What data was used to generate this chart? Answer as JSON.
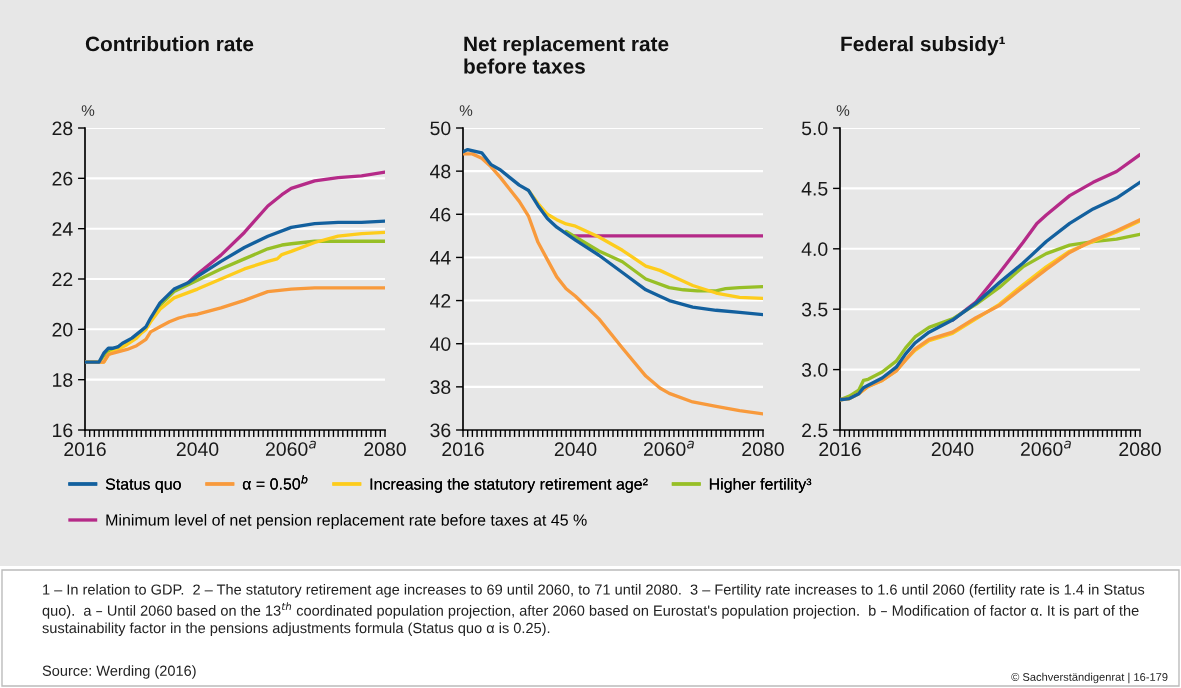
{
  "chart_data": [
    {
      "type": "line",
      "title": "Contribution rate",
      "ylabel": "%",
      "grid": "y",
      "legend": "bottom",
      "xlim": [
        2016,
        2080
      ],
      "ylim": [
        16,
        28
      ],
      "yticks": [
        16,
        18,
        20,
        22,
        24,
        26,
        28
      ],
      "xticks": [
        2016,
        {
          "value": 2017,
          "label": null
        },
        {
          "value": 2018,
          "label": null
        },
        {
          "value": 2019,
          "label": null
        },
        {
          "value": 2020,
          "label": null
        },
        {
          "value": 2021,
          "label": null
        },
        {
          "value": 2022,
          "label": null
        },
        {
          "value": 2023,
          "label": null
        },
        {
          "value": 2024,
          "label": null
        },
        {
          "value": 2025,
          "label": null
        },
        {
          "value": 2026,
          "label": null
        },
        {
          "value": 2027,
          "label": null
        },
        {
          "value": 2028,
          "label": null
        },
        {
          "value": 2029,
          "label": null
        },
        {
          "value": 2030,
          "label": null
        },
        {
          "value": 2031,
          "label": null
        },
        {
          "value": 2032,
          "label": null
        },
        {
          "value": 2033,
          "label": null
        },
        {
          "value": 2034,
          "label": null
        },
        {
          "value": 2035,
          "label": null
        },
        {
          "value": 2036,
          "label": null
        },
        {
          "value": 2037,
          "label": null
        },
        {
          "value": 2038,
          "label": null
        },
        {
          "value": 2039,
          "label": null
        },
        2040,
        {
          "value": 2041,
          "label": null
        },
        {
          "value": 2042,
          "label": null
        },
        {
          "value": 2043,
          "label": null
        },
        {
          "value": 2044,
          "label": null
        },
        {
          "value": 2045,
          "label": null
        },
        {
          "value": 2046,
          "label": null
        },
        {
          "value": 2047,
          "label": null
        },
        {
          "value": 2048,
          "label": null
        },
        {
          "value": 2049,
          "label": null
        },
        {
          "value": 2050,
          "label": null
        },
        {
          "value": 2051,
          "label": null
        },
        {
          "value": 2052,
          "label": null
        },
        {
          "value": 2053,
          "label": null
        },
        {
          "value": 2054,
          "label": null
        },
        {
          "value": 2055,
          "label": null
        },
        {
          "value": 2056,
          "label": null
        },
        {
          "value": 2057,
          "label": null
        },
        {
          "value": 2058,
          "label": null
        },
        {
          "value": 2059,
          "label": null
        },
        {
          "value": 2060,
          "label": "2060$^{a}$"
        },
        {
          "value": 2061,
          "label": null
        },
        {
          "value": 2062,
          "label": null
        },
        {
          "value": 2063,
          "label": null
        },
        {
          "value": 2064,
          "label": null
        },
        {
          "value": 2065,
          "label": null
        },
        {
          "value": 2066,
          "label": null
        },
        {
          "value": 2067,
          "label": null
        },
        {
          "value": 2068,
          "label": null
        },
        {
          "value": 2069,
          "label": null
        },
        {
          "value": 2070,
          "label": null
        },
        {
          "value": 2071,
          "label": null
        },
        {
          "value": 2072,
          "label": null
        },
        {
          "value": 2073,
          "label": null
        },
        {
          "value": 2074,
          "label": null
        },
        {
          "value": 2075,
          "label": null
        },
        {
          "value": 2076,
          "label": null
        },
        {
          "value": 2077,
          "label": null
        },
        {
          "value": 2078,
          "label": null
        },
        {
          "value": 2079,
          "label": null
        },
        2080
      ],
      "series": [
        {
          "name": "Status quo",
          "color": "#13609e",
          "x": [
            2016,
            2018,
            2019,
            2020,
            2021,
            2022,
            2023,
            2024,
            2025,
            2026,
            2027,
            2028,
            2029,
            2030,
            2032,
            2035,
            2038,
            2040,
            2045,
            2050,
            2055,
            2060,
            2065,
            2070,
            2075,
            2080
          ],
          "values": [
            18.7,
            18.7,
            18.7,
            19.05,
            19.25,
            19.25,
            19.3,
            19.45,
            19.55,
            19.65,
            19.8,
            19.95,
            20.1,
            20.45,
            21.05,
            21.6,
            21.85,
            22.1,
            22.7,
            23.25,
            23.7,
            24.05,
            24.2,
            24.25,
            24.25,
            24.3
          ]
        },
        {
          "name": "α = 0.50$^{b}$",
          "color": "#f89a3c",
          "x": [
            2016,
            2020,
            2021,
            2023,
            2025,
            2027,
            2029,
            2030,
            2032,
            2034,
            2036,
            2038,
            2040,
            2045,
            2050,
            2055,
            2060,
            2065,
            2080
          ],
          "values": [
            18.7,
            18.7,
            19.0,
            19.1,
            19.2,
            19.35,
            19.6,
            19.9,
            20.1,
            20.3,
            20.45,
            20.55,
            20.6,
            20.85,
            21.15,
            21.5,
            21.6,
            21.65,
            21.65
          ]
        },
        {
          "name": "Increasing the statutory retirement age²",
          "color": "#fdcc1c",
          "x": [
            2016,
            2020,
            2021,
            2023,
            2025,
            2027,
            2028,
            2029,
            2030,
            2032,
            2035,
            2040,
            2045,
            2050,
            2055,
            2057,
            2058,
            2060,
            2065,
            2070,
            2075,
            2080
          ],
          "values": [
            18.7,
            18.7,
            19.0,
            19.2,
            19.4,
            19.65,
            19.85,
            20.0,
            20.3,
            20.8,
            21.25,
            21.6,
            22.0,
            22.4,
            22.7,
            22.8,
            22.97,
            23.1,
            23.45,
            23.7,
            23.8,
            23.85
          ]
        },
        {
          "name": "Higher fertility³",
          "color": "#97bf26",
          "x": [
            2016,
            2018,
            2019,
            2020,
            2021,
            2022,
            2024,
            2026,
            2028,
            2029,
            2030,
            2032,
            2035,
            2040,
            2045,
            2050,
            2055,
            2058,
            2060,
            2065,
            2070,
            2080
          ],
          "values": [
            18.7,
            18.7,
            18.7,
            18.95,
            19.15,
            19.2,
            19.4,
            19.6,
            19.9,
            20.05,
            20.35,
            20.95,
            21.5,
            21.95,
            22.4,
            22.8,
            23.2,
            23.35,
            23.4,
            23.5,
            23.5,
            23.5
          ]
        },
        {
          "name": "Minimum level of net pension replacement rate before taxes at 45 %",
          "color": "#b52a88",
          "x": [
            2038,
            2040,
            2045,
            2050,
            2055,
            2058,
            2060,
            2065,
            2070,
            2075,
            2080
          ],
          "values": [
            21.85,
            22.2,
            22.95,
            23.85,
            24.9,
            25.35,
            25.6,
            25.9,
            26.03,
            26.1,
            26.25
          ]
        }
      ]
    },
    {
      "type": "line",
      "title": "Net replacement rate\nbefore taxes",
      "ylabel": "%",
      "grid": "y",
      "xlim": [
        2016,
        2080
      ],
      "ylim": [
        36,
        50
      ],
      "yticks": [
        36,
        38,
        40,
        42,
        44,
        46,
        48,
        50
      ],
      "xticks": [
        2016,
        {
          "value": 2017,
          "label": null
        },
        {
          "value": 2018,
          "label": null
        },
        {
          "value": 2019,
          "label": null
        },
        {
          "value": 2020,
          "label": null
        },
        {
          "value": 2021,
          "label": null
        },
        {
          "value": 2022,
          "label": null
        },
        {
          "value": 2023,
          "label": null
        },
        {
          "value": 2024,
          "label": null
        },
        {
          "value": 2025,
          "label": null
        },
        {
          "value": 2026,
          "label": null
        },
        {
          "value": 2027,
          "label": null
        },
        {
          "value": 2028,
          "label": null
        },
        {
          "value": 2029,
          "label": null
        },
        {
          "value": 2030,
          "label": null
        },
        {
          "value": 2031,
          "label": null
        },
        {
          "value": 2032,
          "label": null
        },
        {
          "value": 2033,
          "label": null
        },
        {
          "value": 2034,
          "label": null
        },
        {
          "value": 2035,
          "label": null
        },
        {
          "value": 2036,
          "label": null
        },
        {
          "value": 2037,
          "label": null
        },
        {
          "value": 2038,
          "label": null
        },
        {
          "value": 2039,
          "label": null
        },
        2040,
        {
          "value": 2041,
          "label": null
        },
        {
          "value": 2042,
          "label": null
        },
        {
          "value": 2043,
          "label": null
        },
        {
          "value": 2044,
          "label": null
        },
        {
          "value": 2045,
          "label": null
        },
        {
          "value": 2046,
          "label": null
        },
        {
          "value": 2047,
          "label": null
        },
        {
          "value": 2048,
          "label": null
        },
        {
          "value": 2049,
          "label": null
        },
        {
          "value": 2050,
          "label": null
        },
        {
          "value": 2051,
          "label": null
        },
        {
          "value": 2052,
          "label": null
        },
        {
          "value": 2053,
          "label": null
        },
        {
          "value": 2054,
          "label": null
        },
        {
          "value": 2055,
          "label": null
        },
        {
          "value": 2056,
          "label": null
        },
        {
          "value": 2057,
          "label": null
        },
        {
          "value": 2058,
          "label": null
        },
        {
          "value": 2059,
          "label": null
        },
        {
          "value": 2060,
          "label": "2060$^{a}$"
        },
        {
          "value": 2061,
          "label": null
        },
        {
          "value": 2062,
          "label": null
        },
        {
          "value": 2063,
          "label": null
        },
        {
          "value": 2064,
          "label": null
        },
        {
          "value": 2065,
          "label": null
        },
        {
          "value": 2066,
          "label": null
        },
        {
          "value": 2067,
          "label": null
        },
        {
          "value": 2068,
          "label": null
        },
        {
          "value": 2069,
          "label": null
        },
        {
          "value": 2070,
          "label": null
        },
        {
          "value": 2071,
          "label": null
        },
        {
          "value": 2072,
          "label": null
        },
        {
          "value": 2073,
          "label": null
        },
        {
          "value": 2074,
          "label": null
        },
        {
          "value": 2075,
          "label": null
        },
        {
          "value": 2076,
          "label": null
        },
        {
          "value": 2077,
          "label": null
        },
        {
          "value": 2078,
          "label": null
        },
        {
          "value": 2079,
          "label": null
        },
        2080
      ],
      "series": [
        {
          "name": "Status quo",
          "color": "#13609e",
          "x": [
            2016,
            2017,
            2020,
            2022,
            2024,
            2026,
            2028,
            2030,
            2032,
            2034,
            2036,
            2038,
            2040,
            2045,
            2050,
            2055,
            2058,
            2060,
            2065,
            2070,
            2075,
            2080
          ],
          "values": [
            48.9,
            49.0,
            48.85,
            48.3,
            48.05,
            47.7,
            47.35,
            47.1,
            46.4,
            45.8,
            45.4,
            45.1,
            44.8,
            44.1,
            43.3,
            42.5,
            42.2,
            42.0,
            41.7,
            41.55,
            41.45,
            41.35
          ]
        },
        {
          "name": "α = 0.50$^{b}$",
          "color": "#f89a3c",
          "x": [
            2016,
            2018,
            2020,
            2022,
            2024,
            2026,
            2028,
            2030,
            2032,
            2034,
            2036,
            2038,
            2040,
            2045,
            2050,
            2055,
            2058,
            2060,
            2065,
            2070,
            2075,
            2080
          ],
          "values": [
            48.8,
            48.8,
            48.6,
            48.2,
            47.7,
            47.15,
            46.6,
            45.9,
            44.7,
            43.9,
            43.1,
            42.55,
            42.2,
            41.15,
            39.8,
            38.5,
            37.95,
            37.7,
            37.3,
            37.1,
            36.9,
            36.75
          ]
        },
        {
          "name": "Increasing the statutory retirement age²",
          "color": "#fdcc1c",
          "x": [
            2030,
            2032,
            2034,
            2036,
            2038,
            2040,
            2045,
            2050,
            2055,
            2058,
            2060,
            2065,
            2070,
            2075,
            2080
          ],
          "values": [
            47.1,
            46.5,
            46.0,
            45.75,
            45.55,
            45.45,
            44.95,
            44.33,
            43.6,
            43.4,
            43.2,
            42.7,
            42.35,
            42.15,
            42.1
          ]
        },
        {
          "name": "Higher fertility³",
          "color": "#97bf26",
          "x": [
            2038,
            2040,
            2045,
            2050,
            2055,
            2060,
            2063,
            2066,
            2070,
            2072,
            2075,
            2080
          ],
          "values": [
            45.2,
            44.95,
            44.3,
            43.8,
            43.0,
            42.6,
            42.5,
            42.45,
            42.45,
            42.55,
            42.6,
            42.65
          ]
        },
        {
          "name": "Minimum level of net pension replacement rate before taxes at 45 %",
          "color": "#b52a88",
          "x": [
            2039,
            2045,
            2050,
            2060,
            2070,
            2080
          ],
          "values": [
            45.0,
            45.0,
            45.0,
            45.0,
            45.0,
            45.0
          ]
        }
      ]
    },
    {
      "type": "line",
      "title": "Federal subsidy¹",
      "ylabel": "%",
      "grid": "y",
      "xlim": [
        2016,
        2080
      ],
      "ylim": [
        2.5,
        5.0
      ],
      "yticks": [
        2.5,
        {
          "value": 3,
          "label": "3.0"
        },
        3.5,
        {
          "value": 4,
          "label": "4.0"
        },
        4.5,
        {
          "value": 5,
          "label": "5.0"
        }
      ],
      "xticks": [
        2016,
        {
          "value": 2017,
          "label": null
        },
        {
          "value": 2018,
          "label": null
        },
        {
          "value": 2019,
          "label": null
        },
        {
          "value": 2020,
          "label": null
        },
        {
          "value": 2021,
          "label": null
        },
        {
          "value": 2022,
          "label": null
        },
        {
          "value": 2023,
          "label": null
        },
        {
          "value": 2024,
          "label": null
        },
        {
          "value": 2025,
          "label": null
        },
        {
          "value": 2026,
          "label": null
        },
        {
          "value": 2027,
          "label": null
        },
        {
          "value": 2028,
          "label": null
        },
        {
          "value": 2029,
          "label": null
        },
        {
          "value": 2030,
          "label": null
        },
        {
          "value": 2031,
          "label": null
        },
        {
          "value": 2032,
          "label": null
        },
        {
          "value": 2033,
          "label": null
        },
        {
          "value": 2034,
          "label": null
        },
        {
          "value": 2035,
          "label": null
        },
        {
          "value": 2036,
          "label": null
        },
        {
          "value": 2037,
          "label": null
        },
        {
          "value": 2038,
          "label": null
        },
        {
          "value": 2039,
          "label": null
        },
        2040,
        {
          "value": 2041,
          "label": null
        },
        {
          "value": 2042,
          "label": null
        },
        {
          "value": 2043,
          "label": null
        },
        {
          "value": 2044,
          "label": null
        },
        {
          "value": 2045,
          "label": null
        },
        {
          "value": 2046,
          "label": null
        },
        {
          "value": 2047,
          "label": null
        },
        {
          "value": 2048,
          "label": null
        },
        {
          "value": 2049,
          "label": null
        },
        {
          "value": 2050,
          "label": null
        },
        {
          "value": 2051,
          "label": null
        },
        {
          "value": 2052,
          "label": null
        },
        {
          "value": 2053,
          "label": null
        },
        {
          "value": 2054,
          "label": null
        },
        {
          "value": 2055,
          "label": null
        },
        {
          "value": 2056,
          "label": null
        },
        {
          "value": 2057,
          "label": null
        },
        {
          "value": 2058,
          "label": null
        },
        {
          "value": 2059,
          "label": null
        },
        {
          "value": 2060,
          "label": "2060$^{a}$"
        },
        {
          "value": 2061,
          "label": null
        },
        {
          "value": 2062,
          "label": null
        },
        {
          "value": 2063,
          "label": null
        },
        {
          "value": 2064,
          "label": null
        },
        {
          "value": 2065,
          "label": null
        },
        {
          "value": 2066,
          "label": null
        },
        {
          "value": 2067,
          "label": null
        },
        {
          "value": 2068,
          "label": null
        },
        {
          "value": 2069,
          "label": null
        },
        {
          "value": 2070,
          "label": null
        },
        {
          "value": 2071,
          "label": null
        },
        {
          "value": 2072,
          "label": null
        },
        {
          "value": 2073,
          "label": null
        },
        {
          "value": 2074,
          "label": null
        },
        {
          "value": 2075,
          "label": null
        },
        {
          "value": 2076,
          "label": null
        },
        {
          "value": 2077,
          "label": null
        },
        {
          "value": 2078,
          "label": null
        },
        {
          "value": 2079,
          "label": null
        },
        2080
      ],
      "series": [
        {
          "name": "Status quo",
          "color": "#13609e",
          "x": [
            2016,
            2018,
            2020,
            2021,
            2022,
            2025,
            2028,
            2030,
            2032,
            2035,
            2040,
            2045,
            2050,
            2055,
            2060,
            2065,
            2070,
            2075,
            2080
          ],
          "values": [
            2.75,
            2.76,
            2.8,
            2.85,
            2.87,
            2.93,
            3.02,
            3.13,
            3.22,
            3.31,
            3.41,
            3.55,
            3.72,
            3.88,
            4.06,
            4.21,
            4.33,
            4.42,
            4.55
          ]
        },
        {
          "name": "α = 0.50$^{b}$",
          "color": "#f89a3c",
          "x": [
            2016,
            2018,
            2020,
            2022,
            2025,
            2028,
            2030,
            2032,
            2035,
            2040,
            2045,
            2050,
            2055,
            2060,
            2065,
            2070,
            2075,
            2080
          ],
          "values": [
            2.75,
            2.76,
            2.8,
            2.86,
            2.91,
            2.99,
            3.08,
            3.17,
            3.25,
            3.31,
            3.43,
            3.53,
            3.68,
            3.83,
            3.97,
            4.07,
            4.15,
            4.24
          ]
        },
        {
          "name": "Increasing the statutory retirement age²",
          "color": "#fdcc1c",
          "x": [
            2016,
            2018,
            2020,
            2022,
            2025,
            2028,
            2030,
            2032,
            2035,
            2040,
            2045,
            2050,
            2055,
            2060,
            2065,
            2070,
            2075,
            2080
          ],
          "values": [
            2.75,
            2.76,
            2.8,
            2.86,
            2.91,
            2.99,
            3.08,
            3.16,
            3.24,
            3.3,
            3.42,
            3.54,
            3.7,
            3.85,
            3.98,
            4.06,
            4.14,
            4.23
          ]
        },
        {
          "name": "Higher fertility³",
          "color": "#97bf26",
          "x": [
            2016,
            2018,
            2020,
            2021,
            2022,
            2025,
            2028,
            2030,
            2032,
            2035,
            2040,
            2045,
            2050,
            2055,
            2060,
            2065,
            2070,
            2075,
            2080
          ],
          "values": [
            2.75,
            2.78,
            2.83,
            2.91,
            2.92,
            2.98,
            3.07,
            3.18,
            3.27,
            3.35,
            3.42,
            3.54,
            3.68,
            3.85,
            3.96,
            4.03,
            4.06,
            4.08,
            4.12
          ]
        },
        {
          "name": "Minimum level of net pension replacement rate before taxes at 45 %",
          "color": "#b52a88",
          "x": [
            2040,
            2045,
            2050,
            2055,
            2058,
            2060,
            2065,
            2070,
            2075,
            2080
          ],
          "values": [
            3.41,
            3.56,
            3.8,
            4.05,
            4.21,
            4.28,
            4.44,
            4.55,
            4.64,
            4.78
          ]
        }
      ],
      "annotations": [
        "1 – In relation to GDP.  2 – The statutory retirement age increases to 69 until 2060, to 71 until 2080.  3 – Fertility rate increases to 1.6 until 2060 (fertility rate is 1.4 in Status quo).  a – Until 2060 based on the 13$^{th}$ coordinated population projection, after 2060 based on Eurostat's population projection.  b – Modification of factor α. It is part of the sustainability factor in the pensions adjustments formula (Status quo α is 0.25).",
        "Source: Werding (2016)",
        "© Sachverständigenrat | 16-179"
      ]
    }
  ]
}
